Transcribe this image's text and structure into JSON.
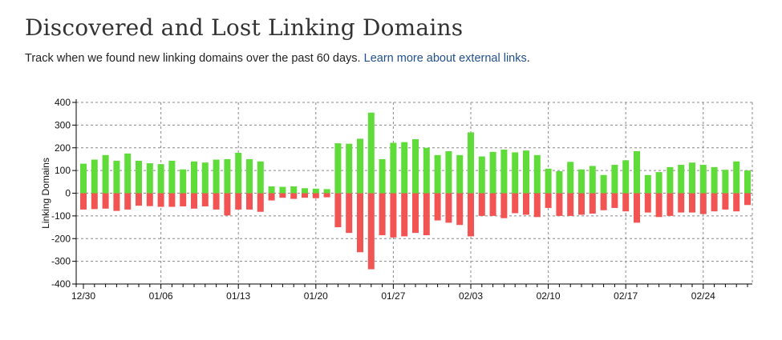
{
  "header": {
    "title": "Discovered and Lost Linking Domains",
    "subtitle_text": "Track when we found new linking domains over the past 60 days.",
    "subtitle_link": "Learn more about external links",
    "subtitle_end": "."
  },
  "colors": {
    "positive": "#5fdc3a",
    "negative": "#f25454",
    "grid": "#888888"
  },
  "chart_data": {
    "type": "bar",
    "ylabel": "Linking Domains",
    "xlabel": "",
    "ylim": [
      -400,
      400
    ],
    "yticks": [
      400,
      300,
      200,
      100,
      0,
      -100,
      -200,
      -300,
      -400
    ],
    "x_tick_labels": [
      {
        "label": "12/30",
        "index": 0
      },
      {
        "label": "01/06",
        "index": 7
      },
      {
        "label": "01/13",
        "index": 14
      },
      {
        "label": "01/20",
        "index": 21
      },
      {
        "label": "01/27",
        "index": 28
      },
      {
        "label": "02/03",
        "index": 35
      },
      {
        "label": "02/10",
        "index": 42
      },
      {
        "label": "02/17",
        "index": 49
      },
      {
        "label": "02/24",
        "index": 56
      }
    ],
    "series": [
      {
        "name": "Discovered",
        "values": [
          130,
          148,
          168,
          143,
          175,
          143,
          132,
          128,
          143,
          105,
          140,
          135,
          148,
          150,
          178,
          150,
          140,
          30,
          28,
          30,
          22,
          20,
          18,
          220,
          218,
          240,
          355,
          150,
          222,
          225,
          238,
          200,
          168,
          185,
          168,
          268,
          162,
          182,
          192,
          180,
          188,
          168,
          108,
          97,
          138,
          105,
          120,
          80,
          125,
          145,
          185,
          80,
          93,
          115,
          125,
          135,
          125,
          115,
          103,
          140,
          100
        ]
      },
      {
        "name": "Lost",
        "values": [
          -72,
          -70,
          -68,
          -78,
          -72,
          -55,
          -57,
          -60,
          -60,
          -58,
          -68,
          -58,
          -72,
          -98,
          -72,
          -72,
          -82,
          -32,
          -20,
          -25,
          -20,
          -22,
          -18,
          -150,
          -175,
          -260,
          -335,
          -185,
          -195,
          -190,
          -175,
          -185,
          -120,
          -130,
          -140,
          -190,
          -100,
          -100,
          -110,
          -88,
          -95,
          -105,
          -65,
          -100,
          -100,
          -95,
          -90,
          -75,
          -65,
          -80,
          -130,
          -85,
          -105,
          -100,
          -85,
          -85,
          -92,
          -80,
          -72,
          -80,
          -52
        ]
      }
    ]
  }
}
